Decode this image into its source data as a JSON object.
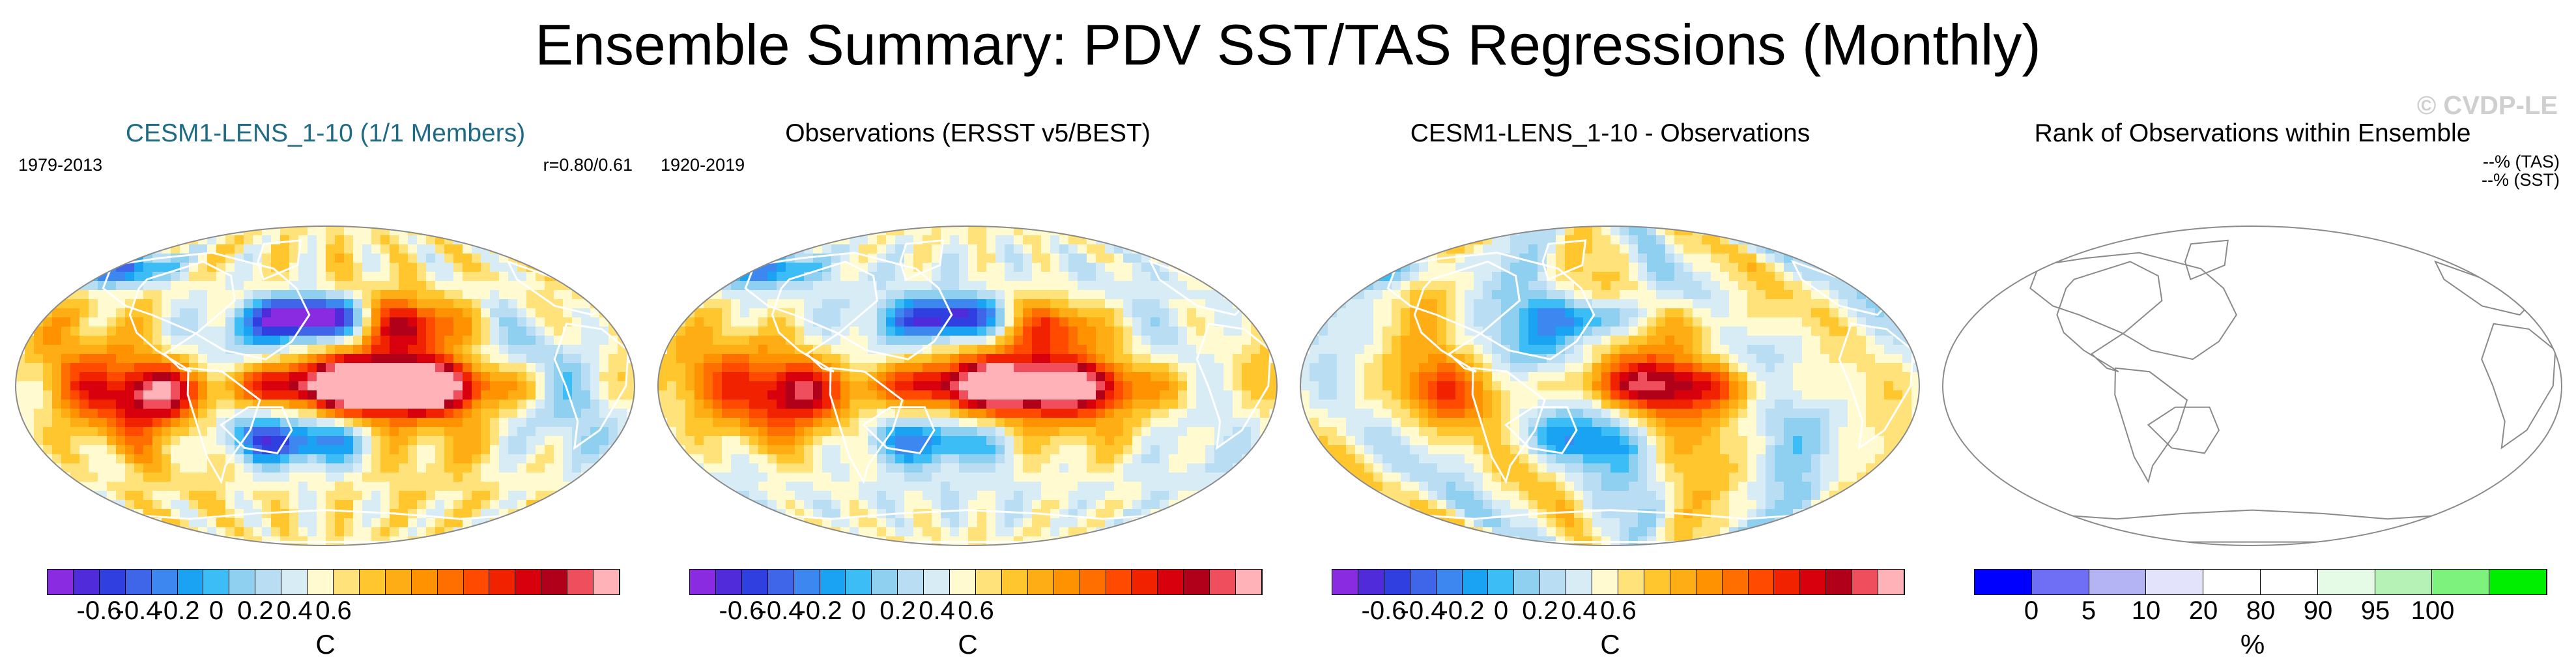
{
  "figure": {
    "title": "Ensemble Summary: PDV SST/TAS Regressions (Monthly)",
    "watermark": "© CVDP-LE"
  },
  "panels": [
    {
      "title": "CESM1-LENS_1-10 (1/1 Members)",
      "left_label": "1979-2013",
      "right_label": "r=0.80/0.61",
      "field": "pdv_model",
      "colorbar": {
        "ticks": [
          "-0.6",
          "-0.4",
          "-0.2",
          "0",
          "0.2",
          "0.4",
          "0.6"
        ],
        "unit": "C",
        "colors": [
          "#8a2be2",
          "#4f2bd9",
          "#2f3fe0",
          "#3f66e8",
          "#3d87f0",
          "#1aa3f3",
          "#3cbdf5",
          "#8fd0f0",
          "#b9ddf2",
          "#d8ecf6",
          "#fffad0",
          "#ffe27a",
          "#ffc62e",
          "#ffad14",
          "#ff9200",
          "#ff6f00",
          "#ff4a00",
          "#f02200",
          "#d8000c",
          "#b0001a",
          "#ef4f5c",
          "#ffb3b8"
        ]
      }
    },
    {
      "title": "Observations (ERSST v5/BEST)",
      "left_label": "1920-2019",
      "field": "pdv_obs",
      "colorbar": {
        "ticks": [
          "-0.6",
          "-0.4",
          "-0.2",
          "0",
          "0.2",
          "0.4",
          "0.6"
        ],
        "unit": "C",
        "colors": [
          "#8a2be2",
          "#4f2bd9",
          "#2f3fe0",
          "#3f66e8",
          "#3d87f0",
          "#1aa3f3",
          "#3cbdf5",
          "#8fd0f0",
          "#b9ddf2",
          "#d8ecf6",
          "#fffad0",
          "#ffe27a",
          "#ffc62e",
          "#ffad14",
          "#ff9200",
          "#ff6f00",
          "#ff4a00",
          "#f02200",
          "#d8000c",
          "#b0001a",
          "#ef4f5c",
          "#ffb3b8"
        ]
      }
    },
    {
      "title": "CESM1-LENS_1-10 - Observations",
      "field": "pdv_diff",
      "colorbar": {
        "ticks": [
          "-0.6",
          "-0.4",
          "-0.2",
          "0",
          "0.2",
          "0.4",
          "0.6"
        ],
        "unit": "C",
        "colors": [
          "#8a2be2",
          "#4f2bd9",
          "#2f3fe0",
          "#3f66e8",
          "#3d87f0",
          "#1aa3f3",
          "#3cbdf5",
          "#8fd0f0",
          "#b9ddf2",
          "#d8ecf6",
          "#fffad0",
          "#ffe27a",
          "#ffc62e",
          "#ffad14",
          "#ff9200",
          "#ff6f00",
          "#ff4a00",
          "#f02200",
          "#d8000c",
          "#b0001a",
          "#ef4f5c",
          "#ffb3b8"
        ]
      }
    },
    {
      "title": "Rank of Observations within Ensemble",
      "rank_tas": "--% (TAS)",
      "rank_sst": "--% (SST)",
      "field": "blank",
      "colorbar": {
        "ticks": [
          "0",
          "5",
          "10",
          "20",
          "80",
          "90",
          "95",
          "100"
        ],
        "unit": "%",
        "colors": [
          "#0000ff",
          "#6f6ff5",
          "#b4b4f4",
          "#e3e3fb",
          "#ffffff",
          "#ffffff",
          "#e6fbe6",
          "#b6f2b6",
          "#7df27d",
          "#00ee00"
        ]
      }
    }
  ]
}
